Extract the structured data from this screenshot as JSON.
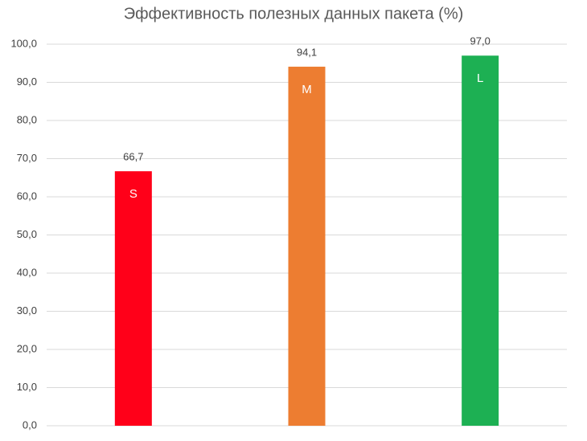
{
  "chart_data": {
    "type": "bar",
    "title": "Эффективность полезных данных пакета (%)",
    "categories": [
      "S",
      "M",
      "L"
    ],
    "values": [
      66.7,
      94.1,
      97.0
    ],
    "value_labels": [
      "66,7",
      "94,1",
      "97,0"
    ],
    "colors": [
      "#ff0019",
      "#ed7d31",
      "#1db053"
    ],
    "ylim": [
      0,
      100
    ],
    "yticks": [
      {
        "value": 0,
        "label": "0,0"
      },
      {
        "value": 10,
        "label": "10,0"
      },
      {
        "value": 20,
        "label": "20,0"
      },
      {
        "value": 30,
        "label": "30,0"
      },
      {
        "value": 40,
        "label": "40,0"
      },
      {
        "value": 50,
        "label": "50,0"
      },
      {
        "value": 60,
        "label": "60,0"
      },
      {
        "value": 70,
        "label": "70,0"
      },
      {
        "value": 80,
        "label": "80,0"
      },
      {
        "value": 90,
        "label": "90,0"
      },
      {
        "value": 100,
        "label": "100,0"
      }
    ],
    "grid": true
  }
}
